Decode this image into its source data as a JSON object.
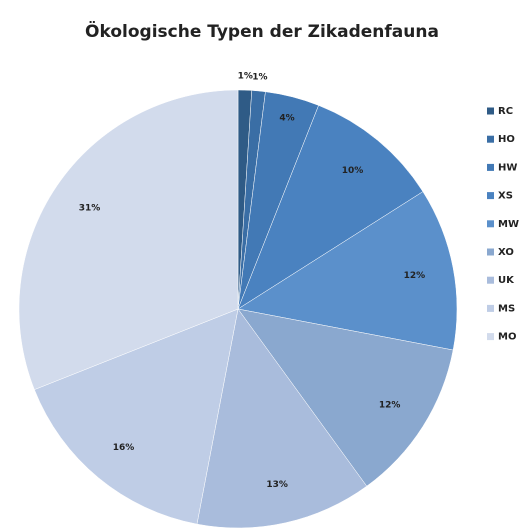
{
  "chart_data": {
    "type": "pie",
    "title": "Ökologische Typen der Zikadenfauna",
    "categories": [
      "RC",
      "HO",
      "HW",
      "XS",
      "MW",
      "XO",
      "UK",
      "MS",
      "MO"
    ],
    "values": [
      1,
      1,
      4,
      10,
      12,
      12,
      13,
      16,
      31
    ],
    "value_labels": [
      "1%",
      "1%",
      "4%",
      "10%",
      "12%",
      "12%",
      "13%",
      "16%",
      "31%"
    ],
    "colors": [
      "#2f5b86",
      "#3a6ea5",
      "#4279b5",
      "#4a82c0",
      "#5b90cb",
      "#8aa8cf",
      "#a9bcdc",
      "#bfcde6",
      "#d2dbec"
    ],
    "legend": "right"
  }
}
